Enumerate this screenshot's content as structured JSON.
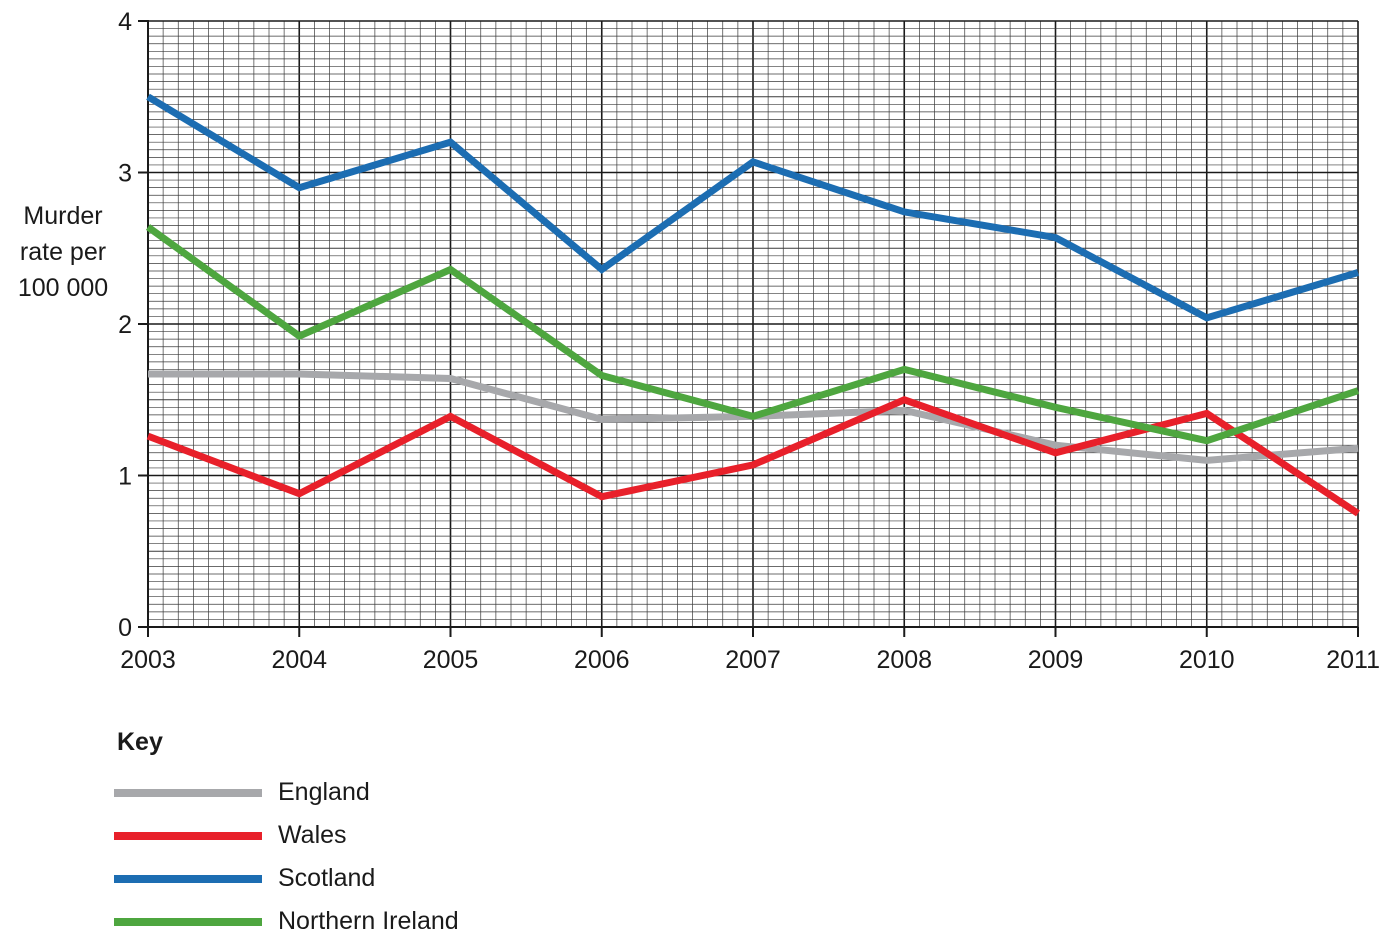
{
  "chart_data": {
    "type": "line",
    "ylabel_lines": [
      "Murder",
      "rate per",
      "100 000"
    ],
    "xlabel": "",
    "title": "",
    "categories": [
      "2003",
      "2004",
      "2005",
      "2006",
      "2007",
      "2008",
      "2009",
      "2010",
      "2011"
    ],
    "ylim": [
      0,
      4
    ],
    "yticks": [
      0,
      1,
      2,
      3,
      4
    ],
    "grid": true,
    "legend_position": "bottom-left",
    "legend_title": "Key",
    "series": [
      {
        "name": "England",
        "color": "#a7a8ab",
        "values": [
          1.67,
          1.67,
          1.64,
          1.37,
          1.39,
          1.43,
          1.2,
          1.1,
          1.18
        ]
      },
      {
        "name": "Wales",
        "color": "#e8202a",
        "values": [
          1.26,
          0.88,
          1.39,
          0.86,
          1.07,
          1.5,
          1.15,
          1.41,
          0.75
        ]
      },
      {
        "name": "Scotland",
        "color": "#1c6db2",
        "values": [
          3.5,
          2.9,
          3.2,
          2.36,
          3.07,
          2.74,
          2.57,
          2.04,
          2.34
        ]
      },
      {
        "name": "Northern Ireland",
        "color": "#4ea63f",
        "values": [
          2.64,
          1.92,
          2.36,
          1.66,
          1.39,
          1.7,
          1.45,
          1.23,
          1.56
        ]
      }
    ]
  }
}
